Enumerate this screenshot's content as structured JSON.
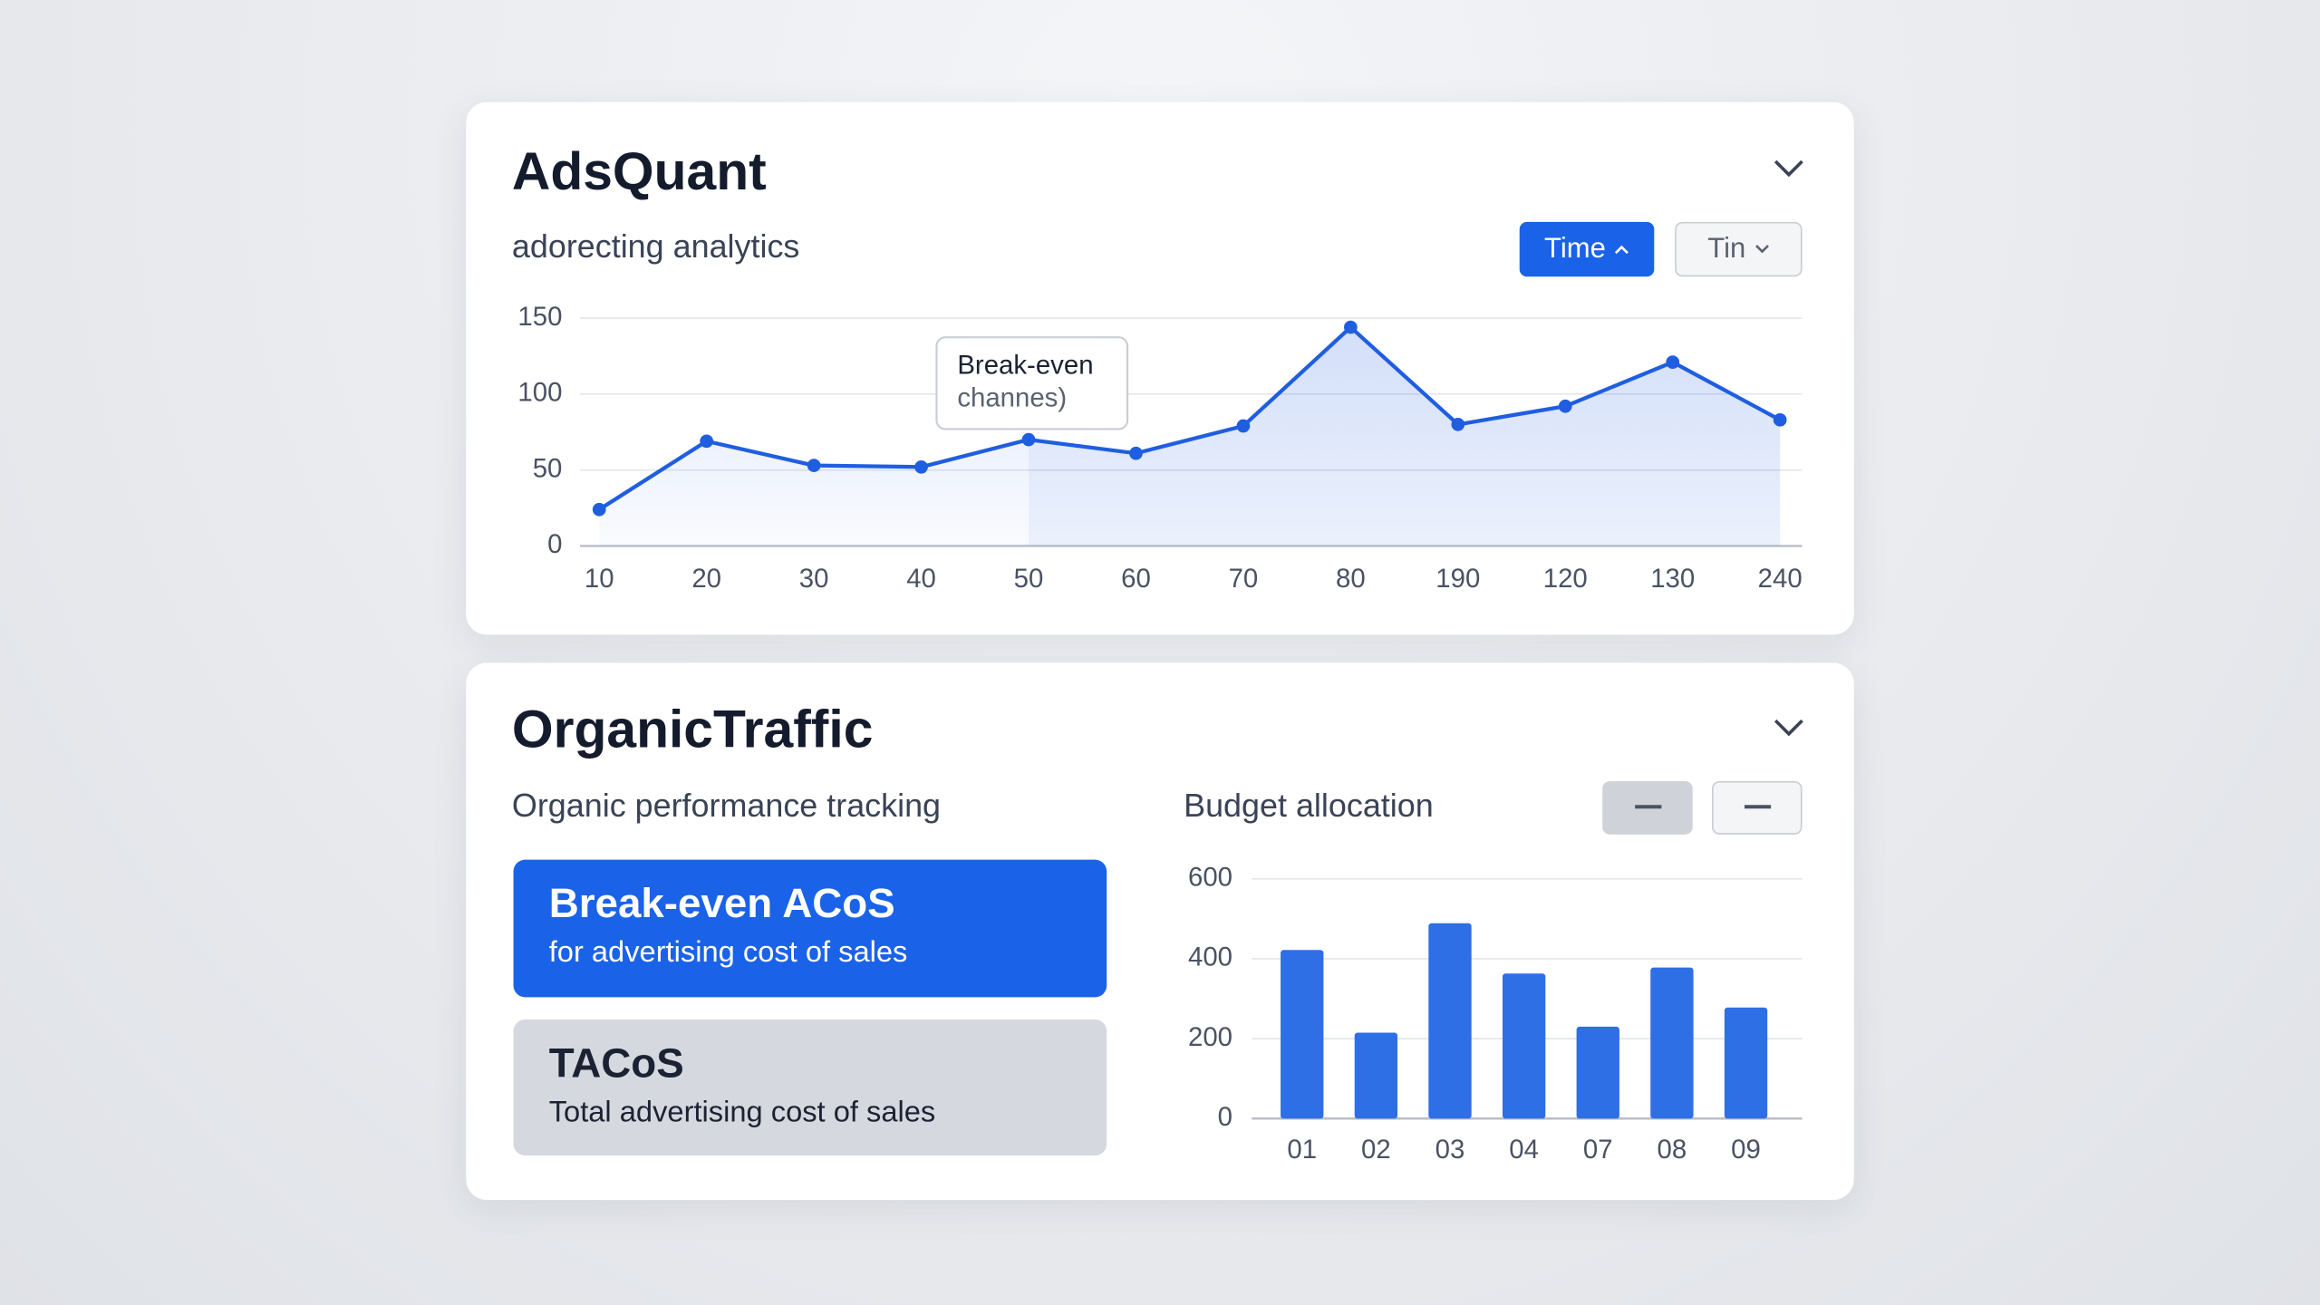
{
  "cards": [
    {
      "title": "AdsQuant",
      "subtitle": "adorecting analytics",
      "buttons": [
        "Time",
        "Tin"
      ]
    },
    {
      "title": "OrganicTraffic",
      "subtitle": "Organic performance tracking",
      "options": [
        {
          "title": "Break-even ACoS",
          "description": "for advertising cost of sales"
        },
        {
          "title": "TACoS",
          "description": "Total advertising cost of sales"
        }
      ]
    }
  ],
  "chart_data": [
    {
      "type": "line",
      "categories": [
        "10",
        "20",
        "30",
        "40",
        "50",
        "60",
        "70",
        "80",
        "190",
        "120",
        "130",
        "240"
      ],
      "values": [
        24,
        69,
        53,
        52,
        70,
        61,
        79,
        144,
        80,
        92,
        121,
        83
      ],
      "color": "#1f5ee0",
      "ylim": [
        0,
        150
      ],
      "yticks": [
        0,
        50,
        100,
        150
      ],
      "grid": true,
      "annotation": [
        "Break-even",
        "channes)"
      ]
    },
    {
      "type": "bar",
      "title": "Budget allocation",
      "categories": [
        "01",
        "02",
        "03",
        "04",
        "07",
        "08",
        "09"
      ],
      "values": [
        422,
        215,
        489,
        363,
        230,
        378,
        278
      ],
      "color": "#2f6fe6",
      "ylim": [
        0,
        600
      ],
      "yticks": [
        0,
        200,
        400,
        600
      ],
      "grid": true
    }
  ]
}
